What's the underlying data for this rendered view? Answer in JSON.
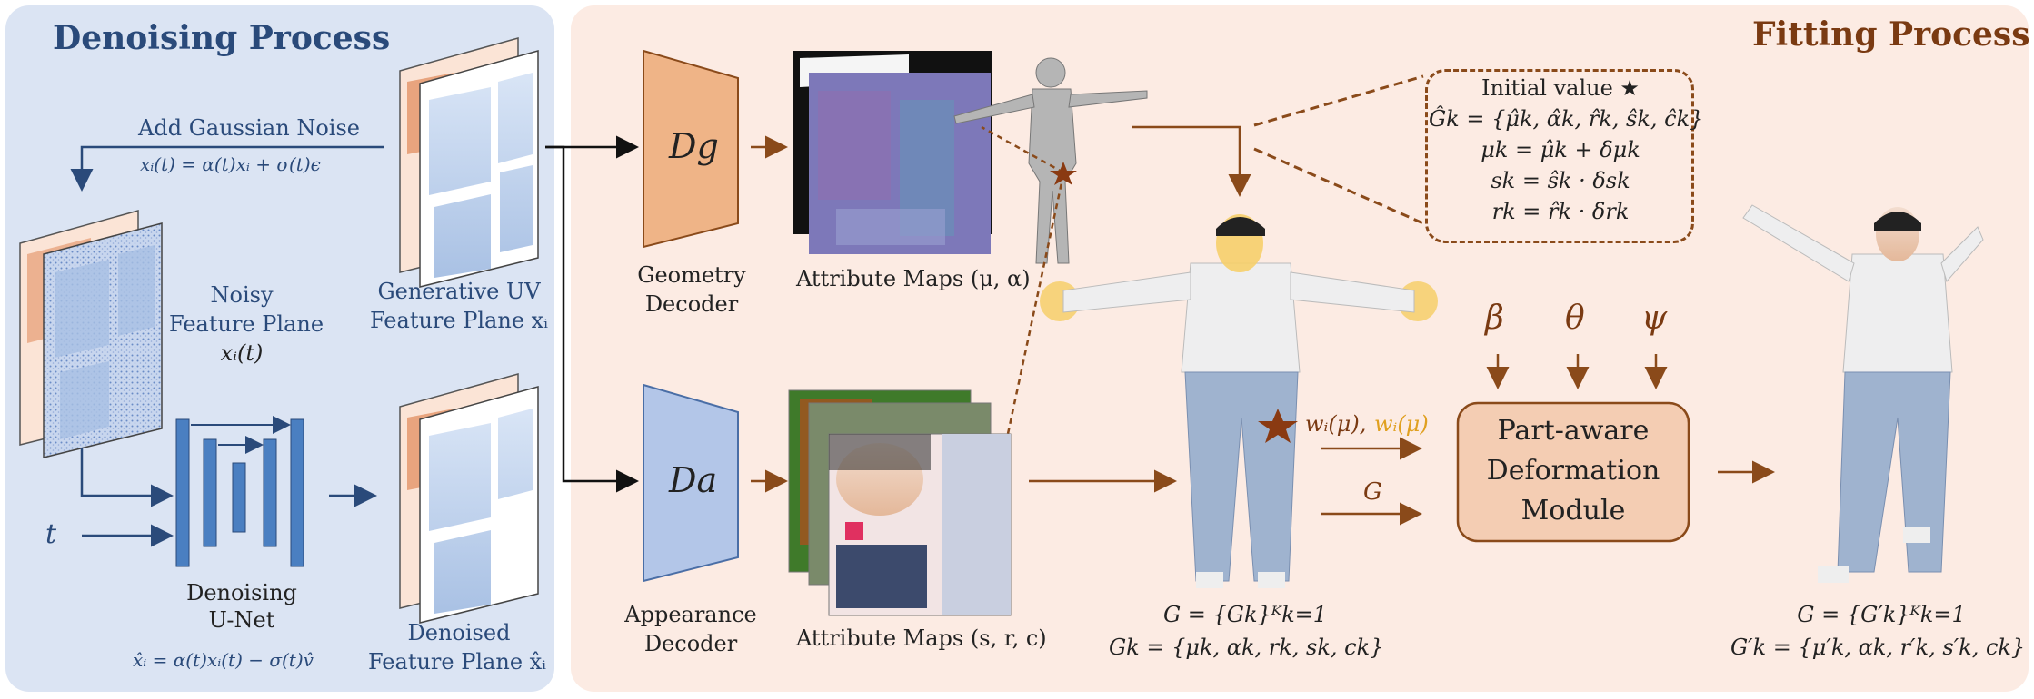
{
  "denoising": {
    "title": "Denoising Process",
    "add_noise": "Add Gaussian Noise",
    "noise_eq": "xᵢ(t) = α(t)xᵢ + σ(t)ϵ",
    "noisy_line1": "Noisy",
    "noisy_line2": "Feature Plane",
    "noisy_line3": "xᵢ(t)",
    "generative_line1": "Generative UV",
    "generative_line2": "Feature Plane xᵢ",
    "t_label": "t",
    "unet_line1": "Denoising",
    "unet_line2": "U-Net",
    "denoise_eq": "x̂ᵢ = α(t)xᵢ(t) − σ(t)v̂",
    "denoised_line1": "Denoised",
    "denoised_line2": "Feature Plane x̂ᵢ"
  },
  "fitting": {
    "title": "Fitting Process",
    "dg_label": "Dg",
    "da_label": "Da",
    "geometry_line1": "Geometry",
    "geometry_line2": "Decoder",
    "appearance_line1": "Appearance",
    "appearance_line2": "Decoder",
    "attr_maps_top": "Attribute Maps (μ, α)",
    "attr_maps_bottom": "Attribute Maps (s, r, c)",
    "initial_value": "Initial value ★",
    "init_eq1": "Ĝk = {μ̂k, α̂k, r̂k, ŝk, ĉk}",
    "init_eq2": "μk = μ̂k + δμk",
    "init_eq3": "sk = ŝk · δsk",
    "init_eq4": "rk = r̂k · δrk",
    "beta": "β",
    "theta": "θ",
    "psi": "ψ",
    "weight_label_a": "wᵢ(μ),",
    "weight_label_b": "wᵢ(μ)",
    "g_label": "G",
    "module_line1": "Part-aware",
    "module_line2": "Deformation",
    "module_line3": "Module",
    "set_eq1": "G = {Gk}ᴷk=1",
    "set_eq2": "Gk = {μk, αk, rk, sk, ck}",
    "out_eq1": "G = {G′k}ᴷk=1",
    "out_eq2": "G′k = {μ′k, αk, r′k, s′k, ck}"
  },
  "colors": {
    "denoise_bg": "#dbe4f3",
    "fitting_bg": "#fcebe3",
    "blue_text": "#2a4a7a",
    "brown_text": "#7a3a12",
    "geometry_decoder": "#efb487",
    "appearance_decoder": "#b3c6e8",
    "module_fill": "#f4cdb3",
    "unet_blue": "#4a7fc1"
  },
  "icons": [
    "star-icon",
    "human-figure-icon",
    "mesh-figure-icon",
    "uv-map-icon"
  ]
}
